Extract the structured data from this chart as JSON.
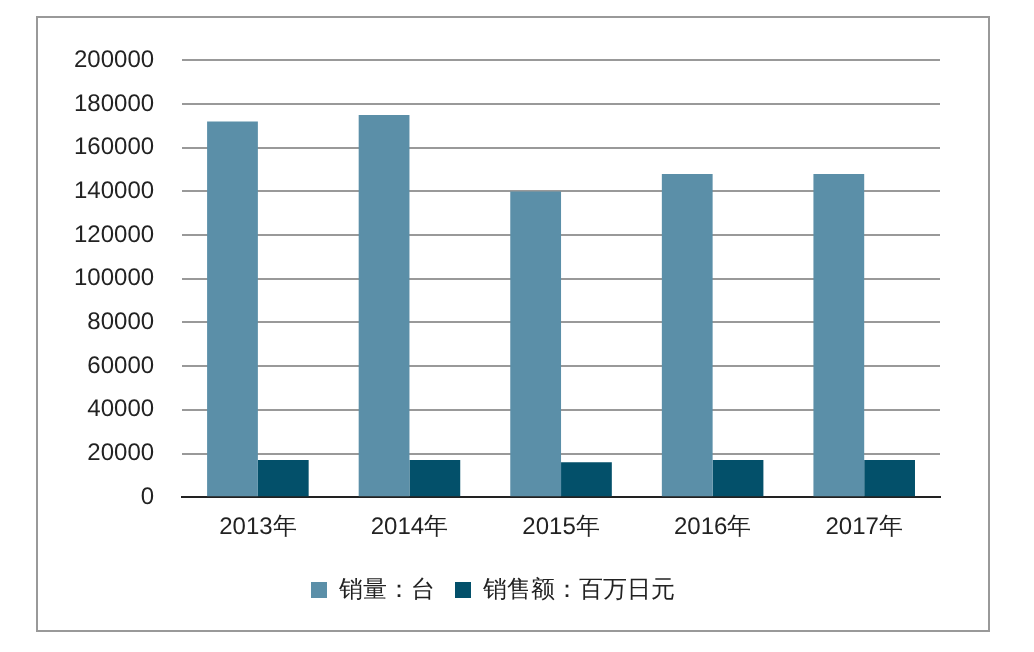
{
  "chart_data": {
    "type": "bar",
    "categories": [
      "2013年",
      "2014年",
      "2015年",
      "2016年",
      "2017年"
    ],
    "series": [
      {
        "name": "销量：台",
        "color": "#5b8fa8",
        "values": [
          172000,
          175000,
          140000,
          148000,
          148000
        ]
      },
      {
        "name": "销售额：百万日元",
        "color": "#03506a",
        "values": [
          17000,
          17000,
          16000,
          17000,
          17000
        ]
      }
    ],
    "ylim": [
      0,
      200000
    ],
    "yticks": [
      0,
      20000,
      40000,
      60000,
      80000,
      100000,
      120000,
      140000,
      160000,
      180000,
      200000
    ],
    "grid": "y",
    "legend": "bottom"
  }
}
